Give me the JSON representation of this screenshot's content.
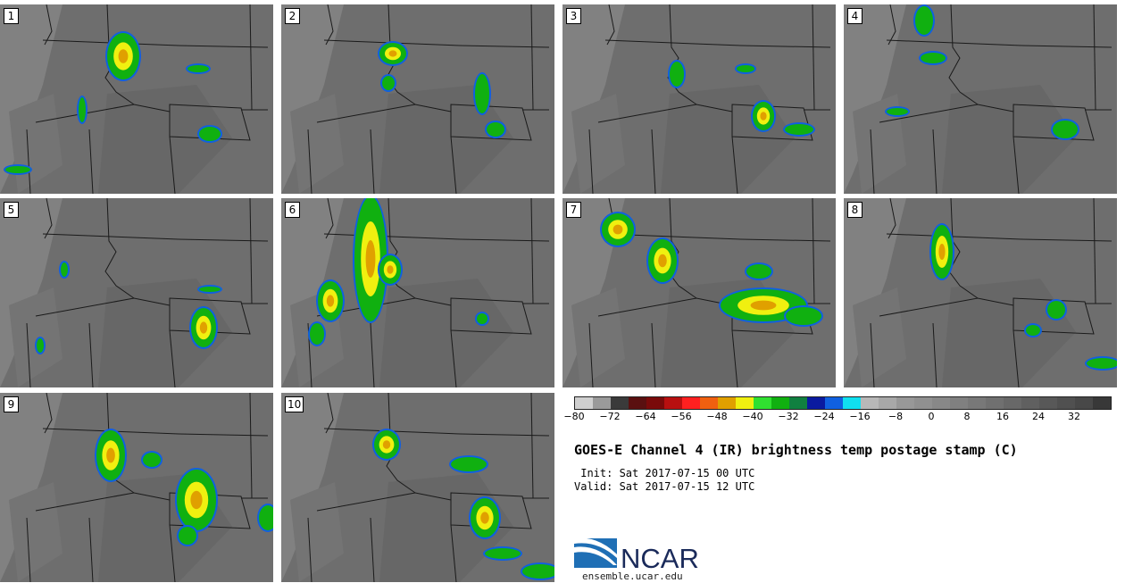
{
  "panels": [
    {
      "label": "1"
    },
    {
      "label": "2"
    },
    {
      "label": "3"
    },
    {
      "label": "4"
    },
    {
      "label": "5"
    },
    {
      "label": "6"
    },
    {
      "label": "7"
    },
    {
      "label": "8"
    },
    {
      "label": "9"
    },
    {
      "label": "10"
    }
  ],
  "colorbar": {
    "colors": [
      "#cfcfcf",
      "#9a9a9a",
      "#3a3a3a",
      "#5a1010",
      "#7a0a0a",
      "#b81010",
      "#ff2020",
      "#f06010",
      "#e0a000",
      "#f0f010",
      "#30e030",
      "#10b010",
      "#108040",
      "#0a1aa0",
      "#1060e0",
      "#10e0f0",
      "#b8b8b8",
      "#a8a8a8",
      "#989898",
      "#909090",
      "#888888",
      "#808080",
      "#787878",
      "#707070",
      "#686868",
      "#606060",
      "#585858",
      "#505050",
      "#484848",
      "#383838"
    ],
    "ticks": [
      "−80",
      "−72",
      "−64",
      "−56",
      "−48",
      "−40",
      "−32",
      "−24",
      "−16",
      "−8",
      "0",
      "8",
      "16",
      "24",
      "32"
    ]
  },
  "title": "GOES-E Channel 4 (IR) brightness temp postage stamp (C)",
  "init": " Init: Sat 2017-07-15 00 UTC",
  "valid": "Valid: Sat 2017-07-15 12 UTC",
  "logo": {
    "text": "NCAR",
    "color": "#1a2a5a",
    "swoosh": "#1f6fb5"
  },
  "site": "ensemble.ucar.edu"
}
